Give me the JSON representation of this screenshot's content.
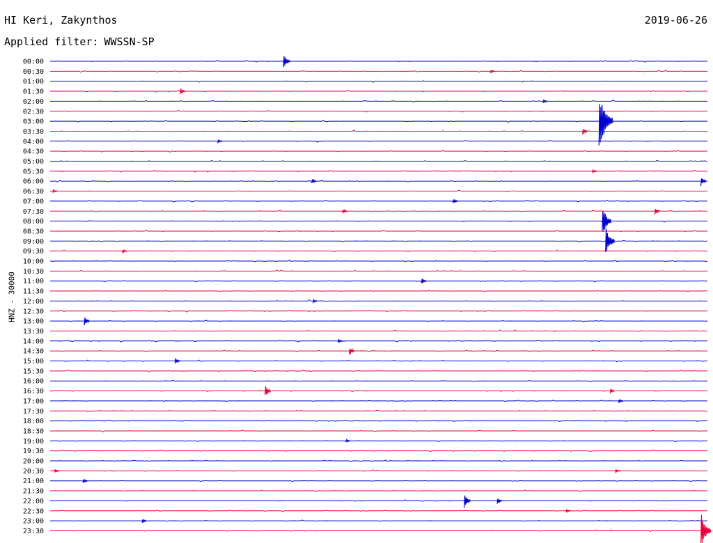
{
  "header": {
    "station": "HI Keri, Zakynthos",
    "date": "2019-06-26",
    "filter_label": "Applied filter:",
    "filter_value": "WWSSN-SP"
  },
  "channel_label": "HNZ - 30000",
  "colors": {
    "trace_even": "#0000cc",
    "trace_odd": "#e8003c",
    "background": "#ffffff",
    "text": "#000000"
  },
  "chart_data": {
    "type": "line",
    "row_labels": [
      "00:00",
      "00:30",
      "01:00",
      "01:30",
      "02:00",
      "02:30",
      "03:00",
      "03:30",
      "04:00",
      "04:30",
      "05:00",
      "05:30",
      "06:00",
      "06:30",
      "07:00",
      "07:30",
      "08:00",
      "08:30",
      "09:00",
      "09:30",
      "10:00",
      "10:30",
      "11:00",
      "11:30",
      "12:00",
      "12:30",
      "13:00",
      "13:30",
      "14:00",
      "14:30",
      "15:00",
      "15:30",
      "16:00",
      "16:30",
      "17:00",
      "17:30",
      "18:00",
      "18:30",
      "19:00",
      "19:30",
      "20:00",
      "20:30",
      "21:00",
      "21:30",
      "22:00",
      "22:30",
      "23:00",
      "23:30"
    ],
    "row_minutes": 30,
    "events": [
      {
        "row": 0,
        "t": 0.355,
        "amp": 12
      },
      {
        "row": 1,
        "t": 0.67,
        "amp": 3
      },
      {
        "row": 3,
        "t": 0.198,
        "amp": 5
      },
      {
        "row": 4,
        "t": 0.75,
        "amp": 3
      },
      {
        "row": 6,
        "t": 0.835,
        "amp": 40
      },
      {
        "row": 7,
        "t": 0.81,
        "amp": 6
      },
      {
        "row": 8,
        "t": 0.255,
        "amp": 3
      },
      {
        "row": 11,
        "t": 0.825,
        "amp": 3
      },
      {
        "row": 12,
        "t": 0.398,
        "amp": 4
      },
      {
        "row": 12,
        "t": 0.99,
        "amp": 7
      },
      {
        "row": 13,
        "t": 0.004,
        "amp": 3
      },
      {
        "row": 14,
        "t": 0.613,
        "amp": 4
      },
      {
        "row": 15,
        "t": 0.445,
        "amp": 4
      },
      {
        "row": 15,
        "t": 0.92,
        "amp": 6
      },
      {
        "row": 16,
        "t": 0.84,
        "amp": 22
      },
      {
        "row": 18,
        "t": 0.845,
        "amp": 22
      },
      {
        "row": 19,
        "t": 0.11,
        "amp": 3
      },
      {
        "row": 22,
        "t": 0.565,
        "amp": 5
      },
      {
        "row": 24,
        "t": 0.4,
        "amp": 3
      },
      {
        "row": 26,
        "t": 0.052,
        "amp": 7
      },
      {
        "row": 28,
        "t": 0.438,
        "amp": 3
      },
      {
        "row": 29,
        "t": 0.455,
        "amp": 7
      },
      {
        "row": 30,
        "t": 0.19,
        "amp": 5
      },
      {
        "row": 33,
        "t": 0.327,
        "amp": 9
      },
      {
        "row": 33,
        "t": 0.852,
        "amp": 4
      },
      {
        "row": 34,
        "t": 0.865,
        "amp": 3
      },
      {
        "row": 38,
        "t": 0.45,
        "amp": 3
      },
      {
        "row": 41,
        "t": 0.007,
        "amp": 3
      },
      {
        "row": 41,
        "t": 0.86,
        "amp": 3
      },
      {
        "row": 42,
        "t": 0.05,
        "amp": 4
      },
      {
        "row": 44,
        "t": 0.63,
        "amp": 10
      },
      {
        "row": 44,
        "t": 0.68,
        "amp": 5
      },
      {
        "row": 45,
        "t": 0.785,
        "amp": 3
      },
      {
        "row": 46,
        "t": 0.14,
        "amp": 4
      },
      {
        "row": 47,
        "t": 0.99,
        "amp": 26
      }
    ]
  }
}
